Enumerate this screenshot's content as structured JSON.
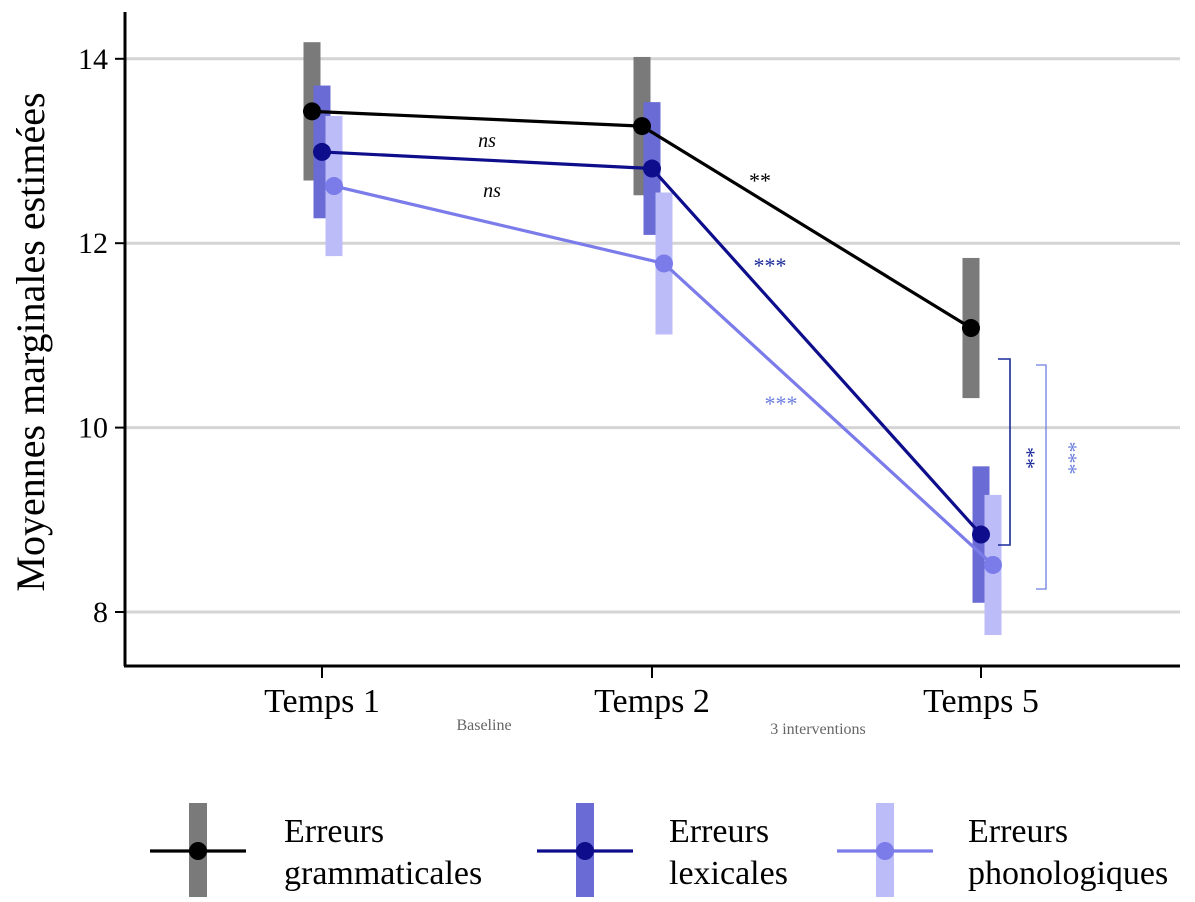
{
  "chart_data": {
    "type": "line",
    "title": "",
    "ylabel": "Moyennes marginales estimées",
    "xlabel": "",
    "ylim": [
      7.4,
      14.5
    ],
    "yticks": [
      8,
      10,
      12,
      14
    ],
    "categories": [
      "Temps 1",
      "Temps 2",
      "Temps 5"
    ],
    "phase_labels": [
      "Baseline",
      "3 interventions"
    ],
    "grid": "horizontal",
    "legend_position": "bottom",
    "series": [
      {
        "name": "Erreurs grammaticales",
        "legend_lines": [
          "Erreurs",
          "grammaticales"
        ],
        "color": "#000000",
        "bar_color": "#7a7a7a",
        "values": [
          13.43,
          13.27,
          11.08
        ],
        "ci_low": [
          12.68,
          12.52,
          10.32
        ],
        "ci_high": [
          14.18,
          14.02,
          11.84
        ]
      },
      {
        "name": "Erreurs lexicales",
        "legend_lines": [
          "Erreurs",
          "lexicales"
        ],
        "color": "#0e0e8c",
        "bar_color": "#6b6bd6",
        "values": [
          12.99,
          12.81,
          8.84
        ],
        "ci_low": [
          12.27,
          12.09,
          8.1
        ],
        "ci_high": [
          13.71,
          13.53,
          9.58
        ]
      },
      {
        "name": "Erreurs phonologiques",
        "legend_lines": [
          "Erreurs",
          "phonologiques"
        ],
        "color": "#7b7bea",
        "bar_color": "#bcbcf8",
        "values": [
          12.62,
          11.78,
          8.51
        ],
        "ci_low": [
          11.86,
          11.01,
          7.75
        ],
        "ci_high": [
          13.38,
          12.55,
          9.27
        ]
      }
    ],
    "annotations": [
      {
        "text": "ns",
        "italic": true,
        "color": "#000000",
        "between": [
          0,
          1
        ],
        "series": 0
      },
      {
        "text": "ns",
        "italic": true,
        "color": "#000000",
        "between": [
          0,
          1
        ],
        "series": 2
      },
      {
        "text": "**",
        "color": "#000000",
        "between": [
          1,
          2
        ],
        "series": 0
      },
      {
        "text": "***",
        "color": "#1a2a9a",
        "between": [
          1,
          2
        ],
        "series": 1
      },
      {
        "text": "***",
        "color": "#6d7ee0",
        "between": [
          1,
          2
        ],
        "series": 2
      },
      {
        "text": "**",
        "color": "#1a2a9a",
        "bracket": "grammaticales-lexicales",
        "at": "Temps 5"
      },
      {
        "text": "***",
        "color": "#6d7ee0",
        "bracket": "grammaticales-phonologiques",
        "at": "Temps 5"
      }
    ]
  }
}
